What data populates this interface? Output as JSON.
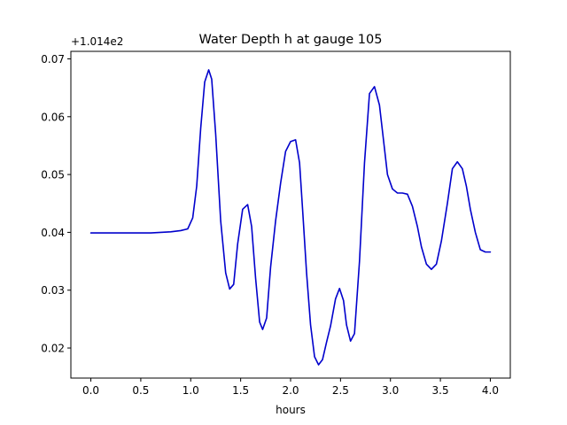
{
  "chart_data": {
    "type": "line",
    "title": "Water Depth h at gauge 105",
    "xlabel": "hours",
    "ylabel": "",
    "y_offset_label": "+1.014e2",
    "xlim": [
      -0.2,
      4.2
    ],
    "ylim": [
      0.0148,
      0.0713
    ],
    "grid": false,
    "x_ticks": [
      0.0,
      0.5,
      1.0,
      1.5,
      2.0,
      2.5,
      3.0,
      3.5,
      4.0
    ],
    "x_tick_labels": [
      "0.0",
      "0.5",
      "1.0",
      "1.5",
      "2.0",
      "2.5",
      "3.0",
      "3.5",
      "4.0"
    ],
    "y_ticks": [
      0.02,
      0.03,
      0.04,
      0.05,
      0.06,
      0.07
    ],
    "y_tick_labels": [
      "0.02",
      "0.03",
      "0.04",
      "0.05",
      "0.06",
      "0.07"
    ],
    "series": [
      {
        "color": "#0000cc",
        "x": [
          0.0,
          0.2,
          0.4,
          0.6,
          0.8,
          0.9,
          0.97,
          1.02,
          1.06,
          1.1,
          1.14,
          1.18,
          1.21,
          1.25,
          1.3,
          1.35,
          1.39,
          1.43,
          1.47,
          1.52,
          1.57,
          1.61,
          1.65,
          1.69,
          1.72,
          1.76,
          1.8,
          1.85,
          1.9,
          1.95,
          2.0,
          2.05,
          2.09,
          2.12,
          2.16,
          2.2,
          2.24,
          2.28,
          2.32,
          2.36,
          2.4,
          2.45,
          2.49,
          2.53,
          2.56,
          2.6,
          2.64,
          2.69,
          2.74,
          2.79,
          2.84,
          2.89,
          2.93,
          2.97,
          3.02,
          3.07,
          3.12,
          3.17,
          3.22,
          3.27,
          3.31,
          3.36,
          3.41,
          3.46,
          3.51,
          3.57,
          3.62,
          3.67,
          3.72,
          3.76,
          3.8,
          3.85,
          3.9,
          3.95,
          4.0
        ],
        "y": [
          0.0399,
          0.0399,
          0.0399,
          0.0399,
          0.0401,
          0.0403,
          0.0406,
          0.0425,
          0.048,
          0.058,
          0.066,
          0.0681,
          0.0665,
          0.057,
          0.042,
          0.033,
          0.0302,
          0.031,
          0.038,
          0.044,
          0.0448,
          0.041,
          0.032,
          0.0245,
          0.0232,
          0.0252,
          0.034,
          0.042,
          0.0485,
          0.054,
          0.0557,
          0.056,
          0.052,
          0.044,
          0.033,
          0.024,
          0.0185,
          0.0171,
          0.018,
          0.021,
          0.0238,
          0.0285,
          0.0303,
          0.0282,
          0.024,
          0.0212,
          0.0225,
          0.035,
          0.052,
          0.064,
          0.0652,
          0.062,
          0.056,
          0.05,
          0.0475,
          0.0468,
          0.0468,
          0.0466,
          0.0445,
          0.041,
          0.0375,
          0.0345,
          0.0336,
          0.0345,
          0.0385,
          0.045,
          0.051,
          0.0522,
          0.051,
          0.048,
          0.044,
          0.04,
          0.037,
          0.0366,
          0.0366
        ]
      }
    ]
  }
}
